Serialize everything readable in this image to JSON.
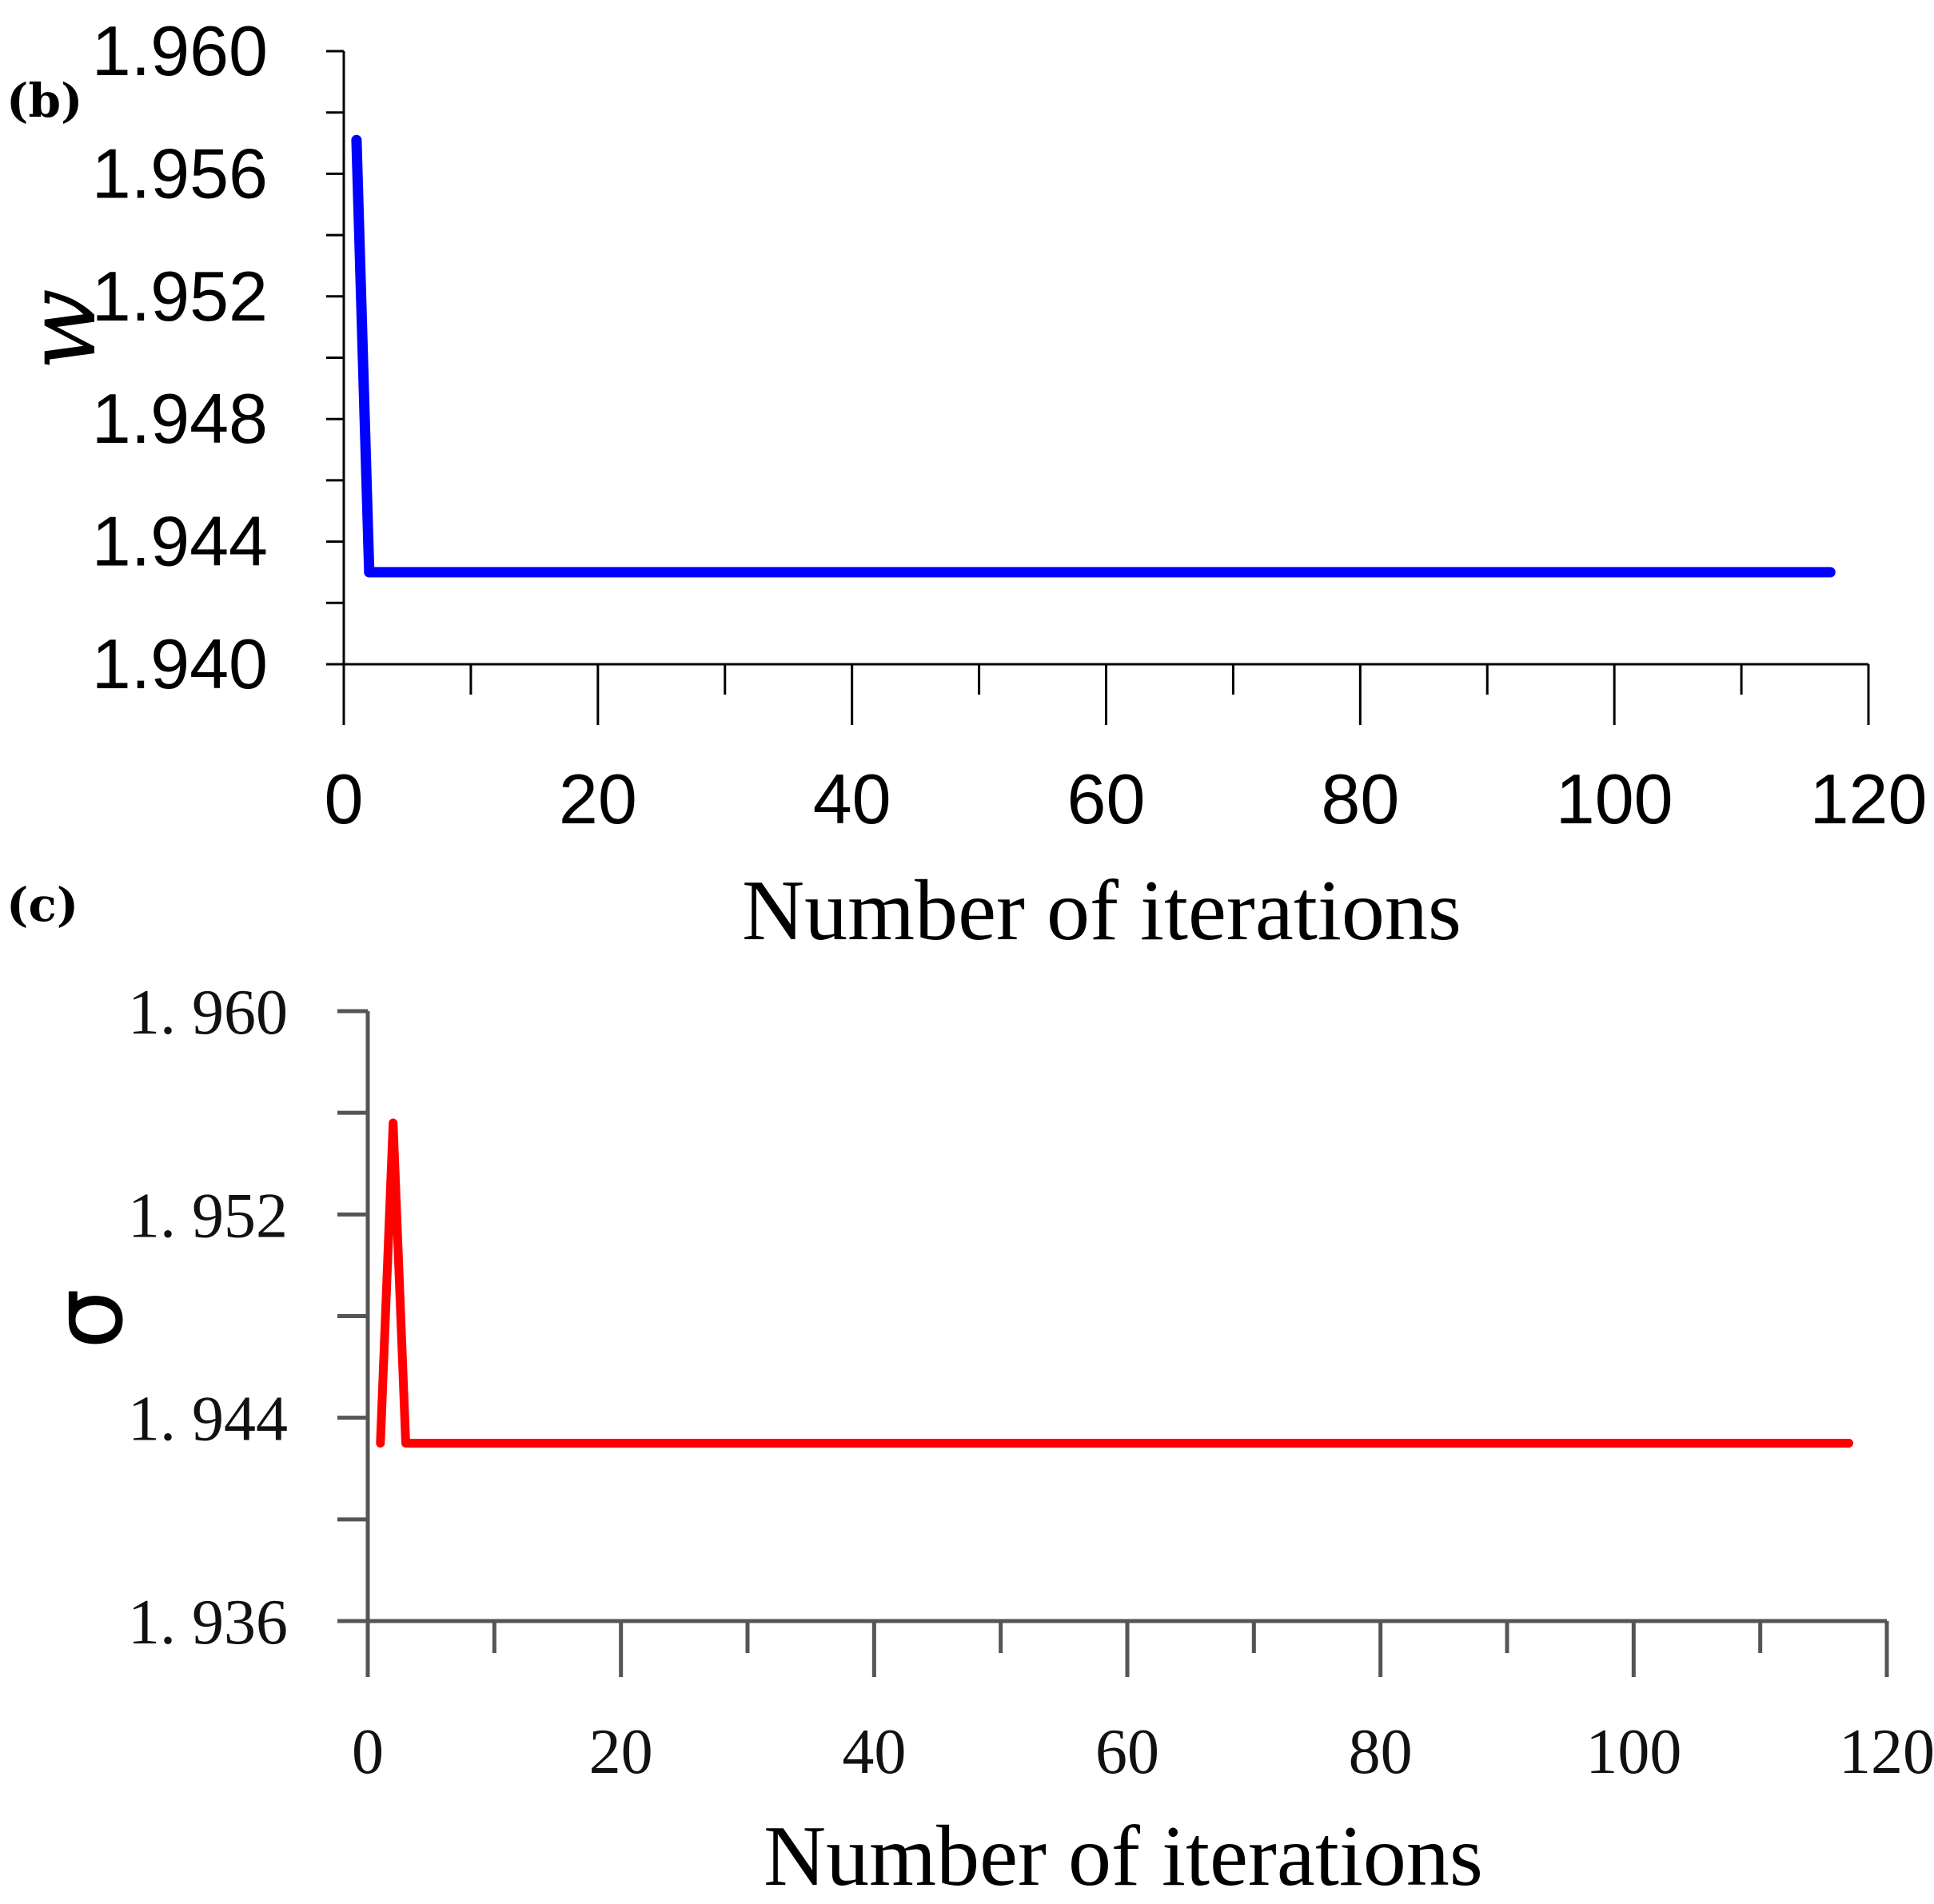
{
  "chart_data": [
    {
      "panel": "(b)",
      "type": "line",
      "xlabel": "Number of iterations",
      "ylabel": "w",
      "xlim": [
        0,
        120
      ],
      "ylim": [
        1.94,
        1.96
      ],
      "xticks": [
        "0",
        "20",
        "40",
        "60",
        "80",
        "100",
        "120"
      ],
      "yticks": [
        "1.940",
        "1.944",
        "1.948",
        "1.952",
        "1.956",
        "1.960"
      ],
      "grid": false,
      "color": "#0000ff",
      "x": [
        1,
        2,
        117
      ],
      "y": [
        1.9571,
        1.943,
        1.943
      ]
    },
    {
      "panel": "(c)",
      "type": "line",
      "xlabel": "Number of iterations",
      "ylabel": "σ",
      "xlim": [
        0,
        120
      ],
      "ylim": [
        1.936,
        1.96
      ],
      "xticks": [
        "0",
        "20",
        "40",
        "60",
        "80",
        "100",
        "120"
      ],
      "yticks": [
        "1. 936",
        "1. 944",
        "1. 952",
        "1. 960"
      ],
      "grid": false,
      "color": "#ff0000",
      "x": [
        1,
        2,
        3,
        117
      ],
      "y": [
        1.943,
        1.9556,
        1.943,
        1.943
      ]
    }
  ]
}
